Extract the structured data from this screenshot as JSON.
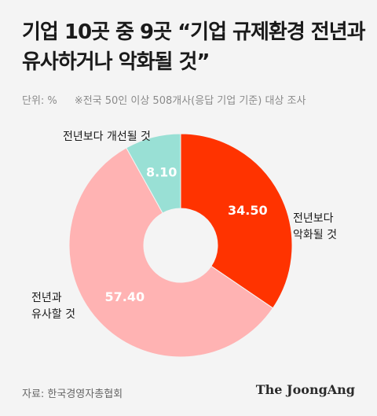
{
  "title_line1": "기업 10곳 중 9곳 “기업 규제환경 전년과",
  "title_line2": "유사하거나 악화될 것”",
  "unit": "단위: %",
  "note": "※전국 50인 이상 508개사(응답 기업 기준) 대상 조사",
  "source": "자료: 한국경영자총협회",
  "brand": "The JoongAng",
  "chart_data": {
    "type": "pie",
    "donut": true,
    "title": "기업 10곳 중 9곳 “기업 규제환경 전년과 유사하거나 악화될 것”",
    "unit": "%",
    "slices": [
      {
        "label": "전년보다 악화될 것",
        "label_lines": [
          "전년보다",
          "악화될 것"
        ],
        "value": 34.5,
        "value_label": "34.50",
        "color": "#ff3300",
        "value_text_color": "#ffffff"
      },
      {
        "label": "전년과 유사할 것",
        "label_lines": [
          "전년과",
          "유사할 것"
        ],
        "value": 57.4,
        "value_label": "57.40",
        "color": "#ffb3b3",
        "value_text_color": "#ffffff"
      },
      {
        "label": "전년보다 개선될 것",
        "label_lines": [
          "전년보다 개선될 것"
        ],
        "value": 8.1,
        "value_label": "8.10",
        "color": "#99e0d5",
        "value_text_color": "#ffffff"
      }
    ]
  }
}
